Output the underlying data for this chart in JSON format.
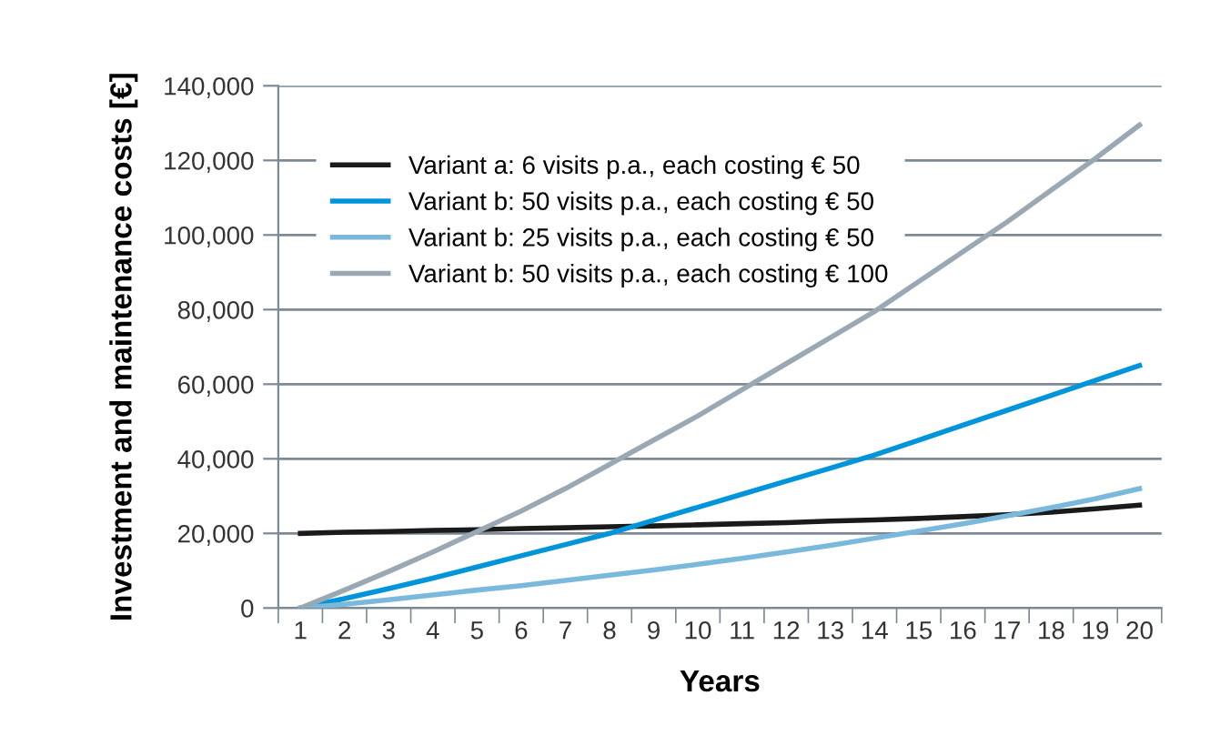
{
  "chart_data": {
    "type": "line",
    "xlabel": "Years",
    "ylabel": "Investment and maintenance costs [€]",
    "categories": [
      "1",
      "2",
      "3",
      "4",
      "5",
      "6",
      "7",
      "8",
      "9",
      "10",
      "11",
      "12",
      "13",
      "14",
      "15",
      "16",
      "17",
      "18",
      "19",
      "20"
    ],
    "series": [
      {
        "name": "Variant a: 6 visits p.a., each costing € 50",
        "color": "#1a1a1a",
        "values": [
          20000,
          20300,
          20500,
          20800,
          21000,
          21300,
          21500,
          21800,
          22000,
          22300,
          22600,
          22900,
          23300,
          23600,
          24000,
          24500,
          25000,
          25700,
          26600,
          27600
        ]
      },
      {
        "name": "Variant b: 50 visits p.a., each costing € 50",
        "color": "#0095db",
        "values": [
          0,
          2500,
          5200,
          8000,
          11000,
          14000,
          17000,
          20000,
          23500,
          27000,
          30500,
          34000,
          37500,
          41000,
          45000,
          49000,
          53000,
          57000,
          61000,
          65000
        ]
      },
      {
        "name": "Variant b: 25 visits p.a., each costing € 50",
        "color": "#7ab8dc",
        "values": [
          0,
          1000,
          2200,
          3500,
          4800,
          6000,
          7400,
          8800,
          10200,
          11700,
          13300,
          15000,
          16800,
          18700,
          20600,
          22600,
          24700,
          26900,
          29300,
          32000
        ]
      },
      {
        "name": "Variant b: 50 visits p.a., each costing € 100",
        "color": "#9aa8b4",
        "values": [
          0,
          4800,
          9800,
          15000,
          20500,
          26000,
          32000,
          38500,
          45000,
          51500,
          58500,
          65500,
          72500,
          79500,
          87500,
          95500,
          103500,
          112000,
          120500,
          129500
        ]
      }
    ],
    "ylim": [
      0,
      140000
    ],
    "yticks": [
      0,
      {
        "value": 20000,
        "label": "20,000"
      },
      {
        "value": 40000,
        "label": "40,000"
      },
      {
        "value": 60000,
        "label": "60,000"
      },
      {
        "value": 80000,
        "label": "80,000"
      },
      {
        "value": 100000,
        "label": "100,000"
      },
      {
        "value": 120000,
        "label": "120,000"
      },
      {
        "value": 140000,
        "label": "140,000"
      }
    ],
    "grid": "y",
    "legend": "top left",
    "marker": "none",
    "line_style": "solid"
  }
}
